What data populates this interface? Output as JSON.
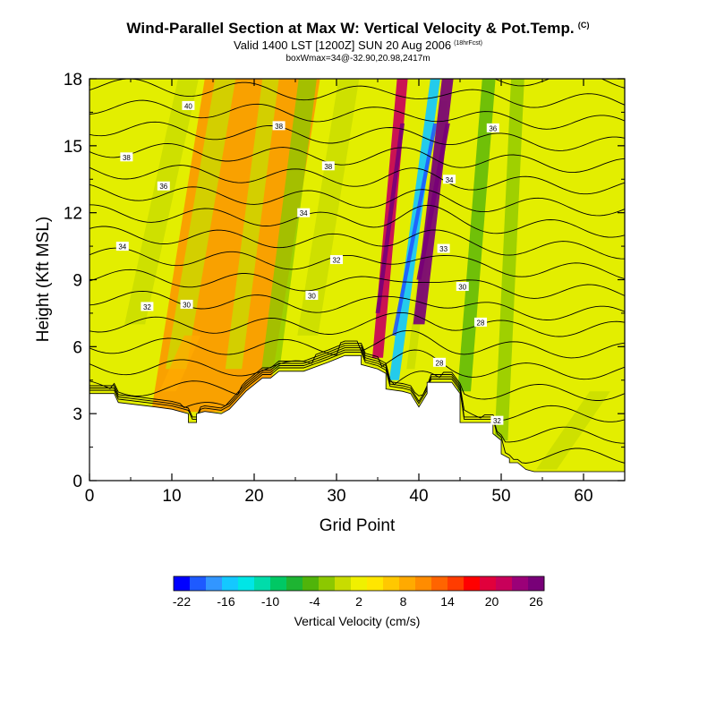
{
  "chart_data": {
    "type": "contour",
    "title": "Wind-Parallel Section at Max W: Vertical Velocity & Pot.Temp.",
    "title_mark": "(C)",
    "subtitle": "Valid 1400 LST [1200Z] SUN 20 Aug 2006",
    "subtitle_note": "(18hrFcst)",
    "info_line": "boxWmax=34@-32.90,20.98,2417m",
    "xlabel": "Grid Point",
    "ylabel": "Height (Kft MSL)",
    "xlim": [
      0,
      65
    ],
    "ylim": [
      0,
      18
    ],
    "x_ticks": [
      "0",
      "10",
      "20",
      "30",
      "40",
      "50",
      "60"
    ],
    "y_ticks": [
      "0",
      "3",
      "6",
      "9",
      "12",
      "15",
      "18"
    ],
    "colorbar": {
      "label": "Vertical Velocity (cm/s)",
      "tick_labels": [
        "-22",
        "-16",
        "-10",
        "-4",
        "2",
        "8",
        "14",
        "20",
        "26"
      ],
      "colors": [
        "#0000ff",
        "#1e5aff",
        "#3296ff",
        "#14c8ff",
        "#00e6e6",
        "#00dcaa",
        "#00c864",
        "#1eb432",
        "#50b40a",
        "#8cc800",
        "#c8dc00",
        "#f0f000",
        "#ffe600",
        "#ffc800",
        "#ffaa00",
        "#ff8c00",
        "#ff6400",
        "#ff3c00",
        "#ff0000",
        "#e1003c",
        "#c8005a",
        "#9b0078",
        "#780078"
      ]
    },
    "terrain_kft": [
      [
        0,
        3.9
      ],
      [
        3,
        3.9
      ],
      [
        3.5,
        3.5
      ],
      [
        8,
        3.3
      ],
      [
        10,
        3.2
      ],
      [
        12,
        3.0
      ],
      [
        12,
        2.6
      ],
      [
        13,
        2.6
      ],
      [
        13,
        3.0
      ],
      [
        14,
        3.1
      ],
      [
        16,
        3.0
      ],
      [
        17,
        3.2
      ],
      [
        19,
        4.0
      ],
      [
        21,
        4.6
      ],
      [
        22,
        4.6
      ],
      [
        23,
        4.9
      ],
      [
        26,
        4.9
      ],
      [
        29,
        5.3
      ],
      [
        31,
        5.6
      ],
      [
        33,
        5.6
      ],
      [
        33,
        5.2
      ],
      [
        35,
        5.0
      ],
      [
        36,
        4.8
      ],
      [
        36,
        4.1
      ],
      [
        38,
        4.0
      ],
      [
        39,
        3.9
      ],
      [
        40,
        3.3
      ],
      [
        41,
        3.9
      ],
      [
        41,
        4.4
      ],
      [
        44,
        4.4
      ],
      [
        45,
        3.9
      ],
      [
        45,
        2.6
      ],
      [
        48,
        2.6
      ],
      [
        49,
        2.6
      ],
      [
        49,
        2.1
      ],
      [
        50,
        1.8
      ],
      [
        50,
        1.2
      ],
      [
        51,
        1.0
      ],
      [
        51,
        0.8
      ],
      [
        52,
        0.8
      ],
      [
        53,
        0.5
      ],
      [
        54,
        0.4
      ],
      [
        65,
        0.4
      ]
    ],
    "theta_contour_labels": [
      {
        "text": "40",
        "x": 12.0,
        "y": 16.8
      },
      {
        "text": "38",
        "x": 23.0,
        "y": 15.9
      },
      {
        "text": "38",
        "x": 29.0,
        "y": 14.1
      },
      {
        "text": "38",
        "x": 4.5,
        "y": 14.5
      },
      {
        "text": "36",
        "x": 9.0,
        "y": 13.2
      },
      {
        "text": "36",
        "x": 49.0,
        "y": 15.8
      },
      {
        "text": "34",
        "x": 26.0,
        "y": 12.0
      },
      {
        "text": "34",
        "x": 4.0,
        "y": 10.5
      },
      {
        "text": "34",
        "x": 43.7,
        "y": 13.5
      },
      {
        "text": "33",
        "x": 43.0,
        "y": 10.4
      },
      {
        "text": "32",
        "x": 30.0,
        "y": 9.9
      },
      {
        "text": "32",
        "x": 7.0,
        "y": 7.8
      },
      {
        "text": "30",
        "x": 11.8,
        "y": 7.9
      },
      {
        "text": "30",
        "x": 27.0,
        "y": 8.3
      },
      {
        "text": "30",
        "x": 45.3,
        "y": 8.7
      },
      {
        "text": "28",
        "x": 47.5,
        "y": 7.1
      },
      {
        "text": "28",
        "x": 42.5,
        "y": 5.3
      },
      {
        "text": "32",
        "x": 49.5,
        "y": 2.7
      }
    ],
    "w_bands": [
      {
        "x0": 14.5,
        "x1": 21.0,
        "w": 14,
        "y0": 3.0,
        "y1": 18.0,
        "v": 10
      },
      {
        "x0": 5.5,
        "x1": 12.0,
        "w": 2.5,
        "y0": 7.0,
        "y1": 18.0,
        "v": -3
      },
      {
        "x0": 10.5,
        "x1": 16.5,
        "w": 2.5,
        "y0": 5.0,
        "y1": 18.0,
        "v": -2
      },
      {
        "x0": 17.5,
        "x1": 22.0,
        "w": 2.0,
        "y0": 5.0,
        "y1": 18.0,
        "v": -3
      },
      {
        "x0": 22.0,
        "x1": 26.5,
        "w": 2.2,
        "y0": 5.0,
        "y1": 18.0,
        "v": -5
      },
      {
        "x0": 26.5,
        "x1": 31.5,
        "w": 2.5,
        "y0": 6.5,
        "y1": 18.0,
        "v": -3
      },
      {
        "x0": 37.0,
        "x1": 42.0,
        "w": 1.2,
        "y0": 4.5,
        "y1": 18.0,
        "v": -18
      },
      {
        "x0": 35.0,
        "x1": 38.0,
        "w": 1.3,
        "y0": 5.5,
        "y1": 18.0,
        "v": 20
      },
      {
        "x0": 39.0,
        "x1": 43.0,
        "w": 1.0,
        "y0": 5.0,
        "y1": 17.0,
        "v": -3
      },
      {
        "x0": 40.0,
        "x1": 43.5,
        "w": 1.4,
        "y0": 7.0,
        "y1": 18.0,
        "v": 24
      },
      {
        "x0": 45.5,
        "x1": 48.5,
        "w": 1.6,
        "y0": 4.0,
        "y1": 18.0,
        "v": -7
      },
      {
        "x0": 50.0,
        "x1": 52.0,
        "w": 1.6,
        "y0": 1.0,
        "y1": 18.0,
        "v": -5
      },
      {
        "x0": 9.5,
        "x1": 12.5,
        "w": 2.0,
        "y0": 4.0,
        "y1": 6.5,
        "v": 6
      },
      {
        "x0": 55.5,
        "x1": 62.0,
        "w": 2.5,
        "y0": 0.5,
        "y1": 4.0,
        "v": -2
      }
    ]
  }
}
